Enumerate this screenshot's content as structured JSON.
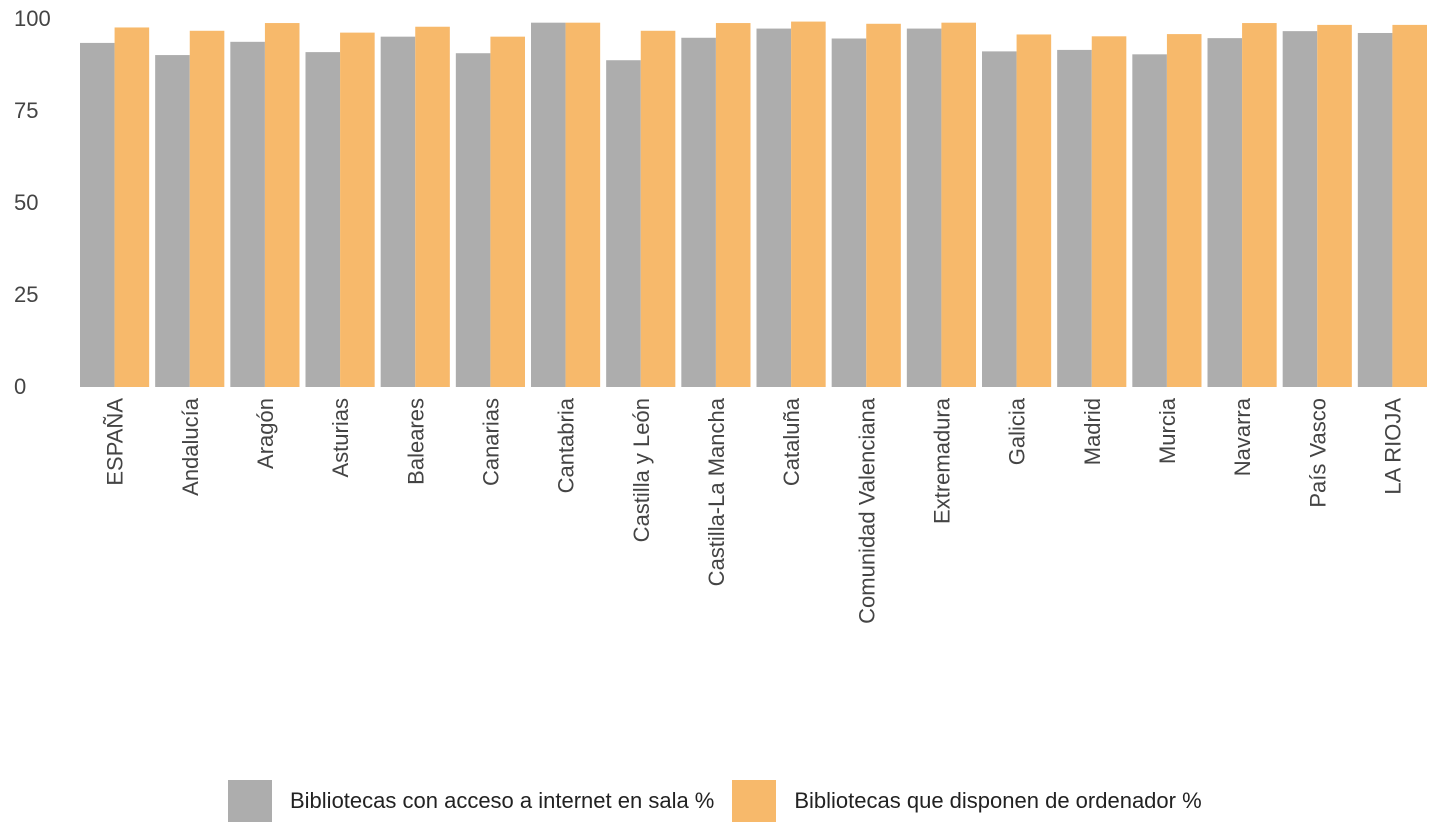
{
  "colors": {
    "internet": "#adadad",
    "ordenador": "#f7b96b",
    "axis_text": "#444444"
  },
  "chart_data": {
    "type": "bar",
    "title": "",
    "xlabel": "",
    "ylabel": "",
    "ylim": [
      0,
      100
    ],
    "yticks": [
      0,
      25,
      50,
      75,
      100
    ],
    "grid": false,
    "legend_position": "bottom",
    "categories": [
      "ESPAÑA",
      "Andalucía",
      "Aragón",
      "Asturias",
      "Baleares",
      "Canarias",
      "Cantabria",
      "Castilla y León",
      "Castilla-La Mancha",
      "Cataluña",
      "Comunidad Valenciana",
      "Extremadura",
      "Galicia",
      "Madrid",
      "Murcia",
      "Navarra",
      "País Vasco",
      "LA RIOJA"
    ],
    "series": [
      {
        "name": "Bibliotecas con acceso a internet en sala %",
        "color_key": "internet",
        "values": [
          93.5,
          90.2,
          93.8,
          91.0,
          95.2,
          90.7,
          99.0,
          88.8,
          94.9,
          97.4,
          94.7,
          97.4,
          91.2,
          91.6,
          90.4,
          94.8,
          96.7,
          96.2
        ]
      },
      {
        "name": "Bibliotecas que disponen de ordenador %",
        "color_key": "ordenador",
        "values": [
          97.7,
          96.8,
          98.9,
          96.3,
          97.9,
          95.2,
          99.0,
          96.8,
          98.9,
          99.3,
          98.7,
          99.0,
          95.8,
          95.3,
          95.9,
          98.9,
          98.4,
          98.4
        ]
      }
    ]
  }
}
